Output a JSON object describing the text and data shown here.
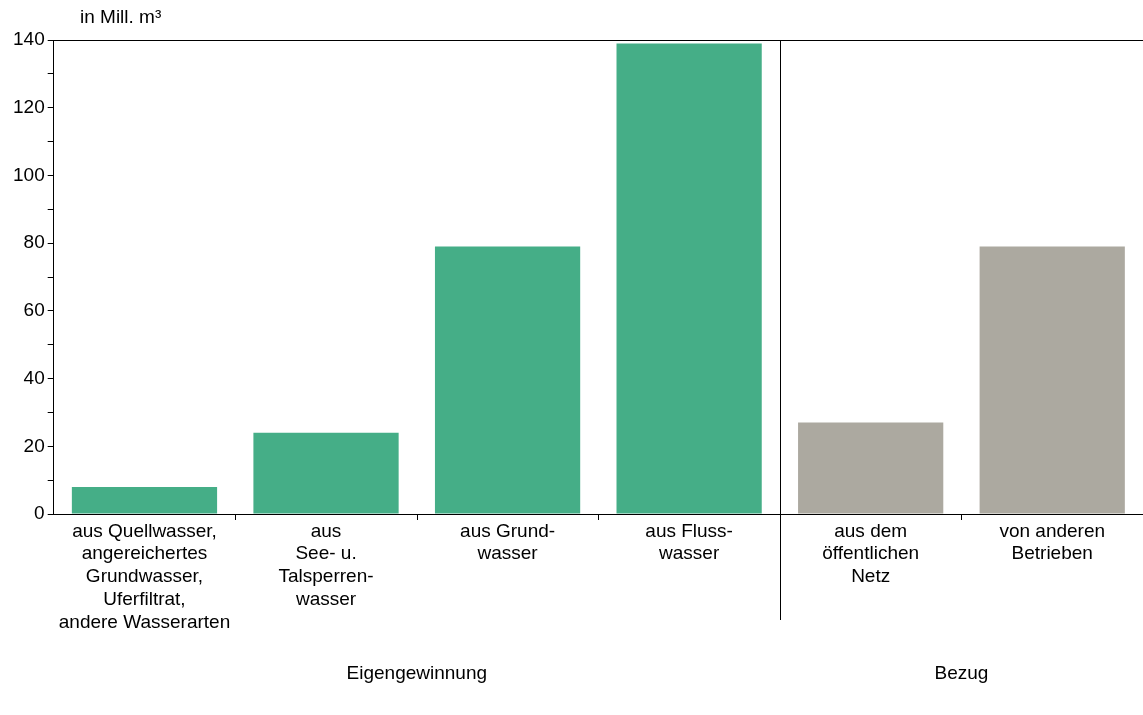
{
  "chart_data": {
    "type": "bar",
    "ylabel": "in Mill. m³",
    "categories": [
      "aus Quellwasser,\nangereichertes\nGrundwasser,\nUferfiltrat,\nandere Wasserarten",
      "aus\nSee- u.\nTalsperren-\nwasser",
      "aus Grund-\nwasser",
      "aus Fluss-\nwasser",
      "aus dem\nöffentlichen\nNetz",
      "von anderen\nBetrieben"
    ],
    "values": [
      8,
      24,
      79,
      139,
      27,
      79
    ],
    "colors": [
      "#45ae87",
      "#45ae87",
      "#45ae87",
      "#45ae87",
      "#aca9a0",
      "#aca9a0"
    ],
    "ylim": [
      0,
      140
    ],
    "yticks": [
      0,
      20,
      40,
      60,
      80,
      100,
      120,
      140
    ],
    "grid": false,
    "legend": false,
    "annotations": [
      "Eigengewinnung",
      "Bezug"
    ]
  }
}
